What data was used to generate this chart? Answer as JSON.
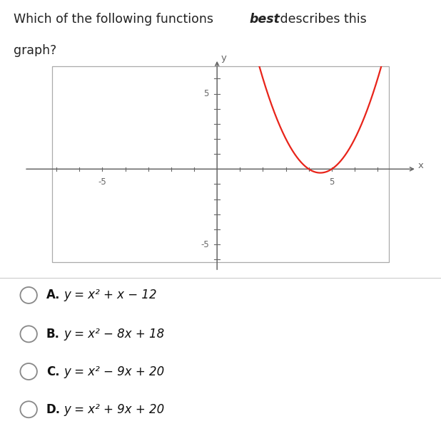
{
  "curve_color": "#e8241a",
  "curve_linewidth": 1.6,
  "background_color": "#ffffff",
  "axis_color": "#666666",
  "tick_label_color": "#666666",
  "box_edge_color": "#aaaaaa",
  "choices_labels": [
    "A.",
    "B.",
    "C.",
    "D."
  ],
  "choices_formulas": [
    "y = x² + x − 12",
    "y = x² − 8x + 18",
    "y = x² − 9x + 20",
    "y = x² + 9x + 20"
  ]
}
